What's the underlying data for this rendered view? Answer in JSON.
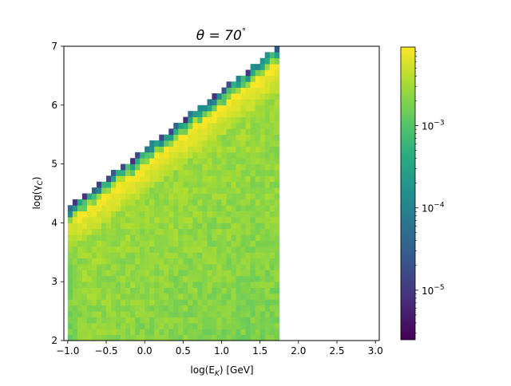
{
  "chart_data": {
    "type": "heatmap",
    "title_prefix": "θ = 70",
    "title_suffix": "°",
    "xlabel": "log(E",
    "xlabel_sub": "K",
    "xlabel_tail": ") [GeV]",
    "ylabel": "log(γ",
    "ylabel_sub": "C",
    "ylabel_tail": ")",
    "xlim": [
      -1.05,
      3.05
    ],
    "ylim": [
      2.0,
      7.0
    ],
    "x_ticks": [
      -1.0,
      -0.5,
      0.0,
      0.5,
      1.0,
      1.5,
      2.0,
      2.5,
      3.0
    ],
    "x_tick_labels": [
      "−1.0",
      "−0.5",
      "0.0",
      "0.5",
      "1.0",
      "1.5",
      "2.0",
      "2.5",
      "3.0"
    ],
    "y_ticks": [
      2,
      3,
      4,
      5,
      6,
      7
    ],
    "y_tick_labels": [
      "2",
      "3",
      "4",
      "5",
      "6",
      "7"
    ],
    "bins": {
      "x_start": -1.0,
      "x_end": 1.75,
      "y_start": 2.0,
      "y_end": 7.0,
      "count_x": 44,
      "count_y": 50
    },
    "edge": {
      "y_at_x_min": 4.2,
      "slope": 1.0
    },
    "colorbar": {
      "scale": "log",
      "min": 2.5e-06,
      "max": 0.009,
      "colormap": "viridis",
      "tick_values": [
        1e-05,
        0.0001,
        0.001
      ],
      "tick_base": "10",
      "tick_exponents": [
        "−5",
        "−4",
        "−3"
      ]
    }
  }
}
